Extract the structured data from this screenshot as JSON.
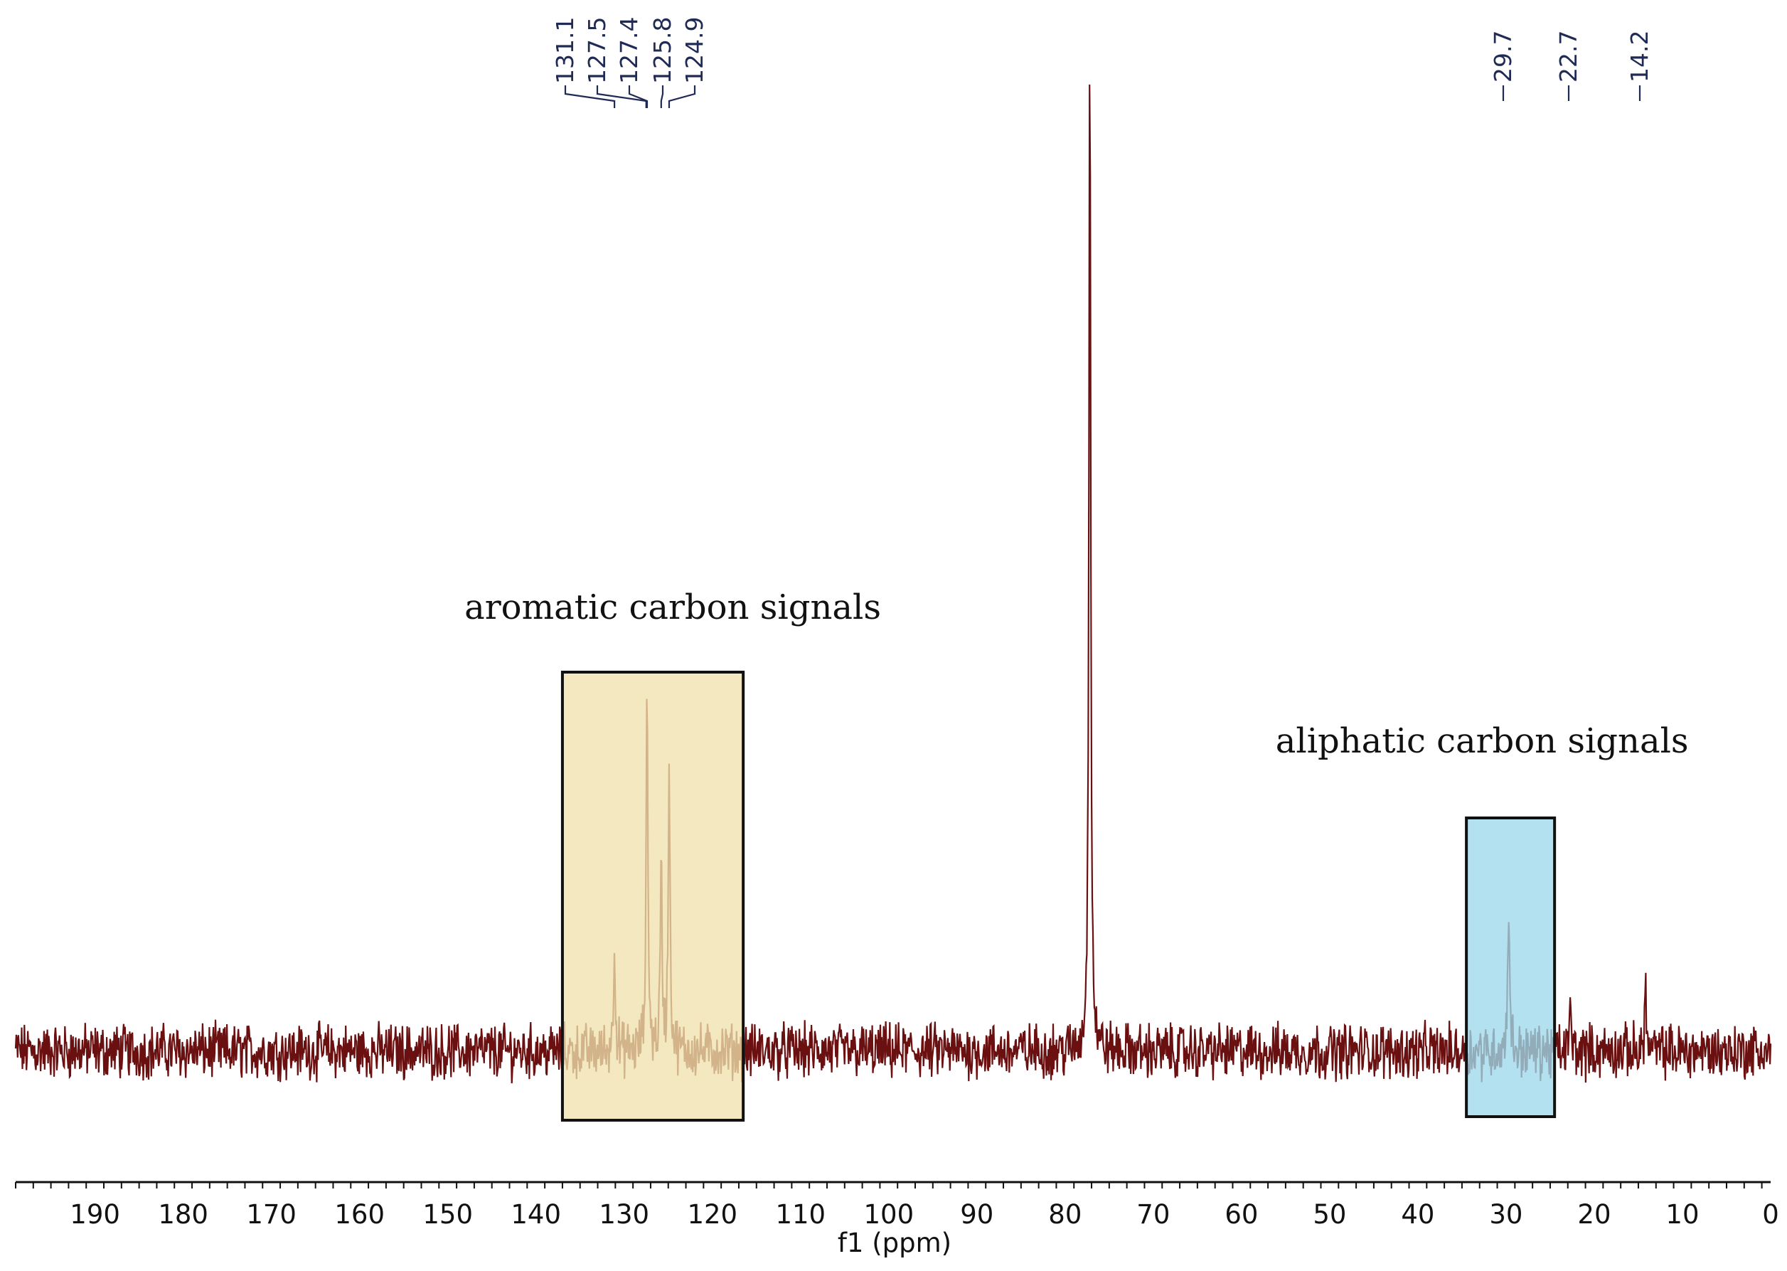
{
  "chart_data": {
    "type": "line",
    "title": "",
    "xlabel": "f1 (ppm)",
    "ylabel": "",
    "xlim": [
      199,
      0
    ],
    "x_ticks": [
      190,
      180,
      170,
      160,
      150,
      140,
      130,
      120,
      110,
      100,
      90,
      80,
      70,
      60,
      50,
      40,
      30,
      20,
      10,
      0
    ],
    "x_ticks_labels": [
      "190",
      "180",
      "170",
      "160",
      "150",
      "140",
      "130",
      "120",
      "110",
      "100",
      "90",
      "80",
      "70",
      "60",
      "50",
      "40",
      "30",
      "20",
      "10",
      "0"
    ],
    "grid": false,
    "legend": "none",
    "series_color": "#6a1010",
    "peak_labels": [
      {
        "text": "131.1",
        "ppm": 131.1
      },
      {
        "text": "127.5",
        "ppm": 127.5
      },
      {
        "text": "127.4",
        "ppm": 127.4
      },
      {
        "text": "125.8",
        "ppm": 125.8
      },
      {
        "text": "124.9",
        "ppm": 124.9
      },
      {
        "text": "29.7",
        "ppm": 29.7
      },
      {
        "text": "22.7",
        "ppm": 22.7
      },
      {
        "text": "14.2",
        "ppm": 14.2
      }
    ],
    "peaks": [
      {
        "ppm": 77.2,
        "intensity": 1.0
      },
      {
        "ppm": 127.4,
        "intensity": 0.35
      },
      {
        "ppm": 124.9,
        "intensity": 0.28
      },
      {
        "ppm": 125.8,
        "intensity": 0.18
      },
      {
        "ppm": 131.1,
        "intensity": 0.11
      },
      {
        "ppm": 29.7,
        "intensity": 0.15
      },
      {
        "ppm": 22.7,
        "intensity": 0.04
      },
      {
        "ppm": 14.2,
        "intensity": 0.06
      }
    ],
    "regions": [
      {
        "label": "aromatic carbon signals",
        "ppm_range": [
          137,
          116.5
        ],
        "color": "#efe1ad"
      },
      {
        "label": "aliphatic carbon signals",
        "ppm_range": [
          34.5,
          24.5
        ],
        "color": "#9fd9eb"
      }
    ]
  }
}
